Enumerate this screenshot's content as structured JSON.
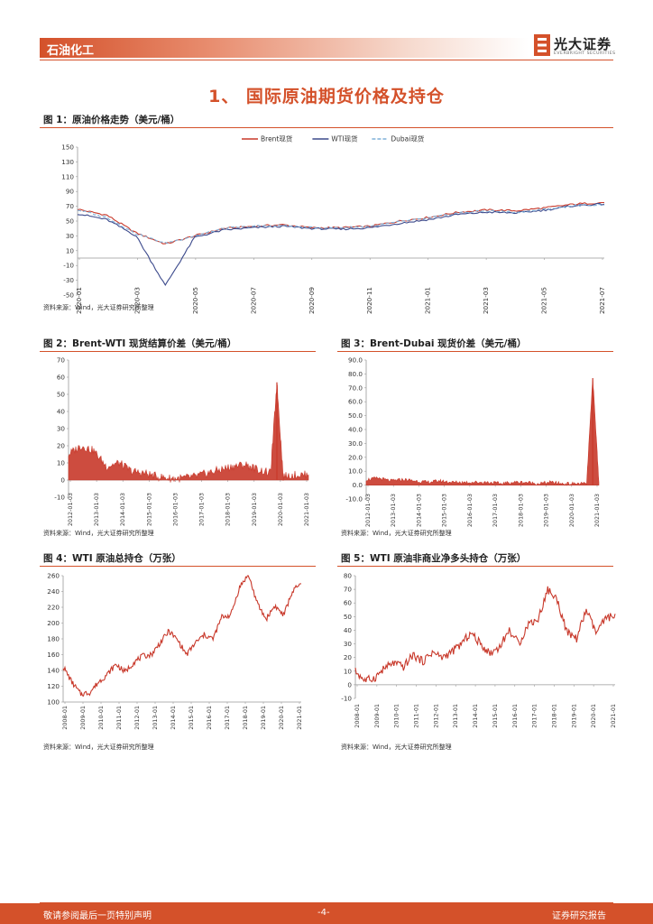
{
  "header": {
    "category": "石油化工",
    "logo_text": "光大证券",
    "logo_sub": "EVERBRIGHT SECURITIES",
    "brand_color": "#d4512a"
  },
  "section_title": "1、 国际原油期货价格及持仓",
  "figures": [
    {
      "title": "图 1：原油价格走势（美元/桶）",
      "source": "资料来源：Wind，光大证券研究所整理"
    },
    {
      "title": "图 2：Brent-WTI 现货结算价差（美元/桶）",
      "source": "资料来源：Wind，光大证券研究所整理"
    },
    {
      "title": "图 3：Brent-Dubai 现货价差（美元/桶）",
      "source": "资料来源：Wind，光大证券研究所整理"
    },
    {
      "title": "图 4：WTI 原油总持仓（万张）",
      "source": "资料来源：Wind，光大证券研究所整理"
    },
    {
      "title": "图 5：WTI 原油非商业净多头持仓（万张）",
      "source": "资料来源：Wind，光大证券研究所整理"
    }
  ],
  "footer": {
    "left": "敬请参阅最后一页特别声明",
    "center": "-4-",
    "right": "证券研究报告"
  },
  "chart_data": [
    {
      "type": "line",
      "id": "fig1",
      "ylim": [
        -50,
        150
      ],
      "yticks": [
        150,
        130,
        110,
        90,
        70,
        50,
        30,
        10,
        -10,
        -30,
        -50
      ],
      "xticks": [
        "2020-01",
        "2020-03",
        "2020-05",
        "2020-07",
        "2020-09",
        "2020-11",
        "2021-01",
        "2021-03",
        "2021-05",
        "2021-07"
      ],
      "legend": "top-center",
      "x": [
        "2020-01",
        "2020-02",
        "2020-03",
        "2020-04",
        "2020-05",
        "2020-06",
        "2020-07",
        "2020-08",
        "2020-09",
        "2020-10",
        "2020-11",
        "2020-12",
        "2021-01",
        "2021-02",
        "2021-03",
        "2021-04",
        "2021-05",
        "2021-06",
        "2021-07"
      ],
      "series": [
        {
          "name": "Brent现货",
          "color": "#c8382a",
          "values": [
            66,
            58,
            34,
            19,
            30,
            40,
            43,
            45,
            41,
            41,
            43,
            50,
            55,
            62,
            65,
            64,
            68,
            73,
            75
          ]
        },
        {
          "name": "WTI现货",
          "color": "#3c4a8c",
          "values": [
            60,
            52,
            30,
            -37,
            28,
            38,
            41,
            43,
            40,
            39,
            41,
            47,
            52,
            59,
            62,
            61,
            65,
            71,
            73
          ]
        },
        {
          "name": "Dubai现货",
          "color": "#7fb0d8",
          "values": [
            65,
            55,
            33,
            20,
            30,
            40,
            43,
            44,
            41,
            41,
            43,
            49,
            54,
            61,
            64,
            62,
            66,
            71,
            72
          ]
        }
      ]
    },
    {
      "type": "area",
      "id": "fig2",
      "ylim": [
        -10,
        70
      ],
      "yticks": [
        70,
        60,
        50,
        40,
        30,
        20,
        10,
        0,
        -10
      ],
      "xticks": [
        "2012-01-03",
        "2013-01-03",
        "2014-01-03",
        "2015-01-03",
        "2016-01-03",
        "2017-01-03",
        "2018-01-03",
        "2019-01-03",
        "2020-01-03",
        "2021-01-03"
      ],
      "x": [
        "2012-01",
        "2012-07",
        "2013-01",
        "2013-07",
        "2014-01",
        "2014-07",
        "2015-01",
        "2015-07",
        "2016-01",
        "2016-07",
        "2017-01",
        "2017-07",
        "2018-01",
        "2018-07",
        "2019-01",
        "2019-07",
        "2020-01",
        "2020-04",
        "2020-07",
        "2021-01",
        "2021-07"
      ],
      "series": [
        {
          "name": "Brent-WTI",
          "color": "#c8382a",
          "values": [
            15,
            20,
            17,
            8,
            10,
            5,
            4,
            2,
            1,
            1,
            2,
            4,
            6,
            8,
            9,
            6,
            4,
            57,
            2,
            3,
            3
          ]
        }
      ]
    },
    {
      "type": "area",
      "id": "fig3",
      "ylim": [
        -10,
        90
      ],
      "yticks": [
        90.0,
        80.0,
        70.0,
        60.0,
        50.0,
        40.0,
        30.0,
        20.0,
        10.0,
        0.0,
        -10.0
      ],
      "xticks": [
        "2012-01-03",
        "2013-01-03",
        "2014-01-03",
        "2015-01-03",
        "2016-01-03",
        "2017-01-03",
        "2018-01-03",
        "2019-01-03",
        "2020-01-03",
        "2021-01-03"
      ],
      "x": [
        "2012-01",
        "2012-07",
        "2013-01",
        "2013-07",
        "2014-01",
        "2014-07",
        "2015-01",
        "2015-07",
        "2016-01",
        "2016-07",
        "2017-01",
        "2017-07",
        "2018-01",
        "2018-07",
        "2019-01",
        "2019-07",
        "2020-01",
        "2020-07",
        "2021-01",
        "2021-04",
        "2021-07"
      ],
      "series": [
        {
          "name": "Brent-Dubai",
          "color": "#c8382a",
          "values": [
            4,
            5,
            3,
            4,
            3,
            2,
            3,
            2,
            2,
            2,
            2,
            1,
            2,
            2,
            1,
            2,
            1,
            1,
            1,
            77,
            2
          ]
        }
      ]
    },
    {
      "type": "line",
      "id": "fig4",
      "ylim": [
        100,
        260
      ],
      "yticks": [
        260,
        240,
        220,
        200,
        180,
        160,
        140,
        120,
        100
      ],
      "xticks": [
        "2008-01",
        "2009-01",
        "2010-01",
        "2011-01",
        "2012-01",
        "2013-01",
        "2014-01",
        "2015-01",
        "2016-01",
        "2017-01",
        "2018-01",
        "2019-01",
        "2020-01",
        "2021-01"
      ],
      "x": [
        "2008-01",
        "2008-07",
        "2009-01",
        "2009-07",
        "2010-01",
        "2010-07",
        "2011-01",
        "2011-07",
        "2012-01",
        "2012-07",
        "2013-01",
        "2013-07",
        "2014-01",
        "2014-07",
        "2015-01",
        "2015-07",
        "2016-01",
        "2016-07",
        "2017-01",
        "2017-07",
        "2018-01",
        "2018-07",
        "2019-01",
        "2019-07",
        "2020-01",
        "2020-07",
        "2021-01",
        "2021-07"
      ],
      "series": [
        {
          "name": "WTI原油总持仓",
          "color": "#c8382a",
          "values": [
            145,
            125,
            110,
            112,
            125,
            135,
            148,
            138,
            150,
            158,
            160,
            175,
            190,
            178,
            160,
            175,
            185,
            180,
            208,
            210,
            245,
            262,
            225,
            205,
            222,
            210,
            240,
            250
          ]
        }
      ]
    },
    {
      "type": "line",
      "id": "fig5",
      "ylim": [
        -10,
        80
      ],
      "yticks": [
        80,
        70,
        60,
        50,
        40,
        30,
        20,
        10,
        0,
        -10
      ],
      "xticks": [
        "2008-01",
        "2009-01",
        "2010-01",
        "2011-01",
        "2012-01",
        "2013-01",
        "2014-01",
        "2015-01",
        "2016-01",
        "2017-01",
        "2018-01",
        "2019-01",
        "2020-01",
        "2021-01"
      ],
      "x": [
        "2008-01",
        "2008-07",
        "2009-01",
        "2009-07",
        "2010-01",
        "2010-07",
        "2011-01",
        "2011-07",
        "2012-01",
        "2012-07",
        "2013-01",
        "2013-07",
        "2014-01",
        "2014-07",
        "2015-01",
        "2015-07",
        "2016-01",
        "2016-07",
        "2017-01",
        "2017-07",
        "2018-01",
        "2018-07",
        "2019-01",
        "2019-07",
        "2020-01",
        "2020-07",
        "2021-01",
        "2021-07"
      ],
      "series": [
        {
          "name": "WTI非商业净多头持仓",
          "color": "#c8382a",
          "values": [
            10,
            3,
            5,
            12,
            16,
            13,
            22,
            17,
            24,
            20,
            24,
            30,
            38,
            30,
            23,
            28,
            40,
            30,
            45,
            48,
            70,
            62,
            38,
            34,
            55,
            38,
            48,
            52
          ]
        }
      ]
    }
  ]
}
